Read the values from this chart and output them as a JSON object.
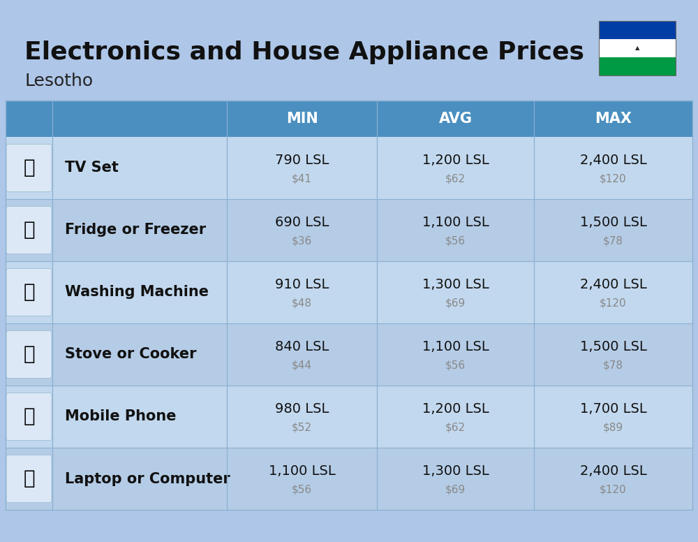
{
  "title": "Electronics and House Appliance Prices",
  "subtitle": "Lesotho",
  "bg_color": "#aec6e8",
  "header_color": "#4a8fc0",
  "header_text_color": "#ffffff",
  "row_colors": [
    "#c2d8ee",
    "#b5cce6"
  ],
  "col_line_color": "#8ab0d0",
  "items": [
    {
      "name": "TV Set",
      "min_lsl": "790 LSL",
      "min_usd": "$41",
      "avg_lsl": "1,200 LSL",
      "avg_usd": "$62",
      "max_lsl": "2,400 LSL",
      "max_usd": "$120"
    },
    {
      "name": "Fridge or Freezer",
      "min_lsl": "690 LSL",
      "min_usd": "$36",
      "avg_lsl": "1,100 LSL",
      "avg_usd": "$56",
      "max_lsl": "1,500 LSL",
      "max_usd": "$78"
    },
    {
      "name": "Washing Machine",
      "min_lsl": "910 LSL",
      "min_usd": "$48",
      "avg_lsl": "1,300 LSL",
      "avg_usd": "$69",
      "max_lsl": "2,400 LSL",
      "max_usd": "$120"
    },
    {
      "name": "Stove or Cooker",
      "min_lsl": "840 LSL",
      "min_usd": "$44",
      "avg_lsl": "1,100 LSL",
      "avg_usd": "$56",
      "max_lsl": "1,500 LSL",
      "max_usd": "$78"
    },
    {
      "name": "Mobile Phone",
      "min_lsl": "980 LSL",
      "min_usd": "$52",
      "avg_lsl": "1,200 LSL",
      "avg_usd": "$62",
      "max_lsl": "1,700 LSL",
      "max_usd": "$89"
    },
    {
      "name": "Laptop or Computer",
      "min_lsl": "1,100 LSL",
      "min_usd": "$56",
      "avg_lsl": "1,300 LSL",
      "avg_usd": "$69",
      "max_lsl": "2,400 LSL",
      "max_usd": "$120"
    }
  ],
  "flag_stripe_colors": [
    "#003DA5",
    "#FFFFFF",
    "#009A44"
  ],
  "title_fontsize": 26,
  "subtitle_fontsize": 18,
  "header_fontsize": 15,
  "item_name_fontsize": 15,
  "value_fontsize": 14,
  "usd_fontsize": 11
}
